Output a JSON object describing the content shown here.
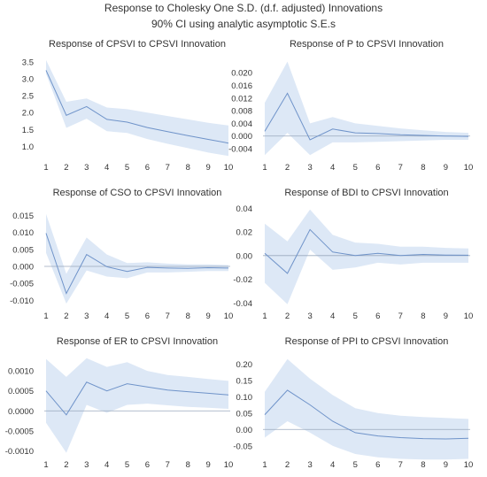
{
  "header": {
    "title": "Response to Cholesky One S.D. (d.f. adjusted) Innovations",
    "subtitle": "90% CI using analytic asymptotic S.E.s"
  },
  "colors": {
    "band": "#dde8f6",
    "line": "#6f93c9",
    "zero": "#9aa9bd",
    "text": "#333333"
  },
  "chart_data": [
    {
      "type": "area",
      "title": "Response of CPSVI to CPSVI Innovation",
      "x": [
        1,
        2,
        3,
        4,
        5,
        6,
        7,
        8,
        9,
        10
      ],
      "ylim": [
        0.7,
        3.6
      ],
      "yticks": [
        1.0,
        1.5,
        2.0,
        2.5,
        3.0,
        3.5
      ],
      "ytick_labels": [
        "1.0",
        "1.5",
        "2.0",
        "2.5",
        "3.0",
        "3.5"
      ],
      "series": [
        {
          "values": [
            3.25,
            1.92,
            2.18,
            1.8,
            1.72,
            1.56,
            1.44,
            1.32,
            1.21,
            1.1
          ]
        },
        {
          "values": [
            3.55,
            2.32,
            2.42,
            2.15,
            2.1,
            2.0,
            1.9,
            1.8,
            1.7,
            1.62
          ]
        },
        {
          "values": [
            3.15,
            1.55,
            1.82,
            1.45,
            1.4,
            1.22,
            1.08,
            0.95,
            0.82,
            0.72
          ]
        }
      ]
    },
    {
      "type": "area",
      "title": "Response of P to CPSVI Innovation",
      "x": [
        1,
        2,
        3,
        4,
        5,
        6,
        7,
        8,
        9,
        10
      ],
      "ylim": [
        -0.0065,
        0.0245
      ],
      "yticks": [
        -0.004,
        0.0,
        0.004,
        0.008,
        0.012,
        0.016,
        0.02
      ],
      "ytick_labels": [
        "-0.004",
        "0.000",
        "0.004",
        "0.008",
        "0.012",
        "0.016",
        "0.020"
      ],
      "series": [
        {
          "values": [
            0.0015,
            0.0135,
            -0.0012,
            0.0022,
            0.001,
            0.0008,
            0.0004,
            0.0002,
            0.0,
            -0.0001
          ]
        },
        {
          "values": [
            0.0105,
            0.0235,
            0.004,
            0.006,
            0.004,
            0.0032,
            0.0024,
            0.0018,
            0.0013,
            0.001
          ]
        },
        {
          "values": [
            -0.006,
            0.001,
            -0.006,
            -0.002,
            -0.002,
            -0.0018,
            -0.0016,
            -0.0014,
            -0.0012,
            -0.0012
          ]
        }
      ]
    },
    {
      "type": "area",
      "title": "Response of CSO to CPSVI Innovation",
      "x": [
        1,
        2,
        3,
        4,
        5,
        6,
        7,
        8,
        9,
        10
      ],
      "ylim": [
        -0.0115,
        0.0175
      ],
      "yticks": [
        -0.01,
        -0.005,
        0.0,
        0.005,
        0.01,
        0.015
      ],
      "ytick_labels": [
        "-0.010",
        "-0.005",
        "0.000",
        "0.005",
        "0.010",
        "0.015"
      ],
      "series": [
        {
          "values": [
            0.0098,
            -0.008,
            0.0035,
            -0.0001,
            -0.0015,
            -0.0003,
            -0.0005,
            -0.0006,
            -0.0004,
            -0.0005
          ]
        },
        {
          "values": [
            0.0155,
            -0.0022,
            0.0085,
            0.0035,
            0.001,
            0.0012,
            0.0008,
            0.0006,
            0.0006,
            0.0004
          ]
        },
        {
          "values": [
            0.004,
            -0.011,
            -0.0012,
            -0.003,
            -0.0035,
            -0.0018,
            -0.0018,
            -0.0016,
            -0.0014,
            -0.0014
          ]
        }
      ]
    },
    {
      "type": "area",
      "title": "Response of BDI to CPSVI Innovation",
      "x": [
        1,
        2,
        3,
        4,
        5,
        6,
        7,
        8,
        9,
        10
      ],
      "ylim": [
        -0.042,
        0.041
      ],
      "yticks": [
        -0.04,
        -0.02,
        0.0,
        0.02,
        0.04
      ],
      "ytick_labels": [
        "-0.04",
        "-0.02",
        "0.00",
        "0.02",
        "0.04"
      ],
      "series": [
        {
          "values": [
            0.002,
            -0.015,
            0.022,
            0.003,
            0.0,
            0.002,
            0.0,
            0.001,
            0.0005,
            0.0003
          ]
        },
        {
          "values": [
            0.027,
            0.012,
            0.039,
            0.0175,
            0.011,
            0.01,
            0.0075,
            0.0075,
            0.0065,
            0.006
          ]
        },
        {
          "values": [
            -0.023,
            -0.041,
            0.005,
            -0.012,
            -0.01,
            -0.006,
            -0.0075,
            -0.006,
            -0.006,
            -0.006
          ]
        }
      ]
    },
    {
      "type": "area",
      "title": "Response of ER to CPSVI Innovation",
      "x": [
        1,
        2,
        3,
        4,
        5,
        6,
        7,
        8,
        9,
        10
      ],
      "ylim": [
        -0.00108,
        0.00138
      ],
      "yticks": [
        -0.001,
        -0.0005,
        0.0,
        0.0005,
        0.001
      ],
      "ytick_labels": [
        "-0.0010",
        "-0.0005",
        "0.0000",
        "0.0005",
        "0.0010"
      ],
      "series": [
        {
          "values": [
            0.0005,
            -0.0001,
            0.00072,
            0.0005,
            0.00068,
            0.0006,
            0.00052,
            0.00048,
            0.00044,
            0.0004
          ]
        },
        {
          "values": [
            0.0013,
            0.00085,
            0.00132,
            0.0011,
            0.00122,
            0.001,
            0.0009,
            0.00085,
            0.0008,
            0.00075
          ]
        },
        {
          "values": [
            -0.0003,
            -0.00105,
            0.00015,
            -5e-05,
            0.00015,
            0.00018,
            0.00014,
            0.0001,
            8e-05,
            5e-05
          ]
        }
      ]
    },
    {
      "type": "area",
      "title": "Response of PPI to CPSVI Innovation",
      "x": [
        1,
        2,
        3,
        4,
        5,
        6,
        7,
        8,
        9,
        10
      ],
      "ylim": [
        -0.075,
        0.225
      ],
      "yticks": [
        -0.05,
        0.0,
        0.05,
        0.1,
        0.15,
        0.2
      ],
      "ytick_labels": [
        "-0.05",
        "0.00",
        "0.05",
        "0.10",
        "0.15",
        "0.20"
      ],
      "series": [
        {
          "values": [
            0.045,
            0.12,
            0.075,
            0.025,
            -0.01,
            -0.02,
            -0.025,
            -0.028,
            -0.029,
            -0.027
          ]
        },
        {
          "values": [
            0.115,
            0.215,
            0.155,
            0.105,
            0.065,
            0.05,
            0.042,
            0.038,
            0.035,
            0.032
          ]
        },
        {
          "values": [
            -0.025,
            0.025,
            -0.01,
            -0.05,
            -0.075,
            -0.085,
            -0.09,
            -0.092,
            -0.092,
            -0.09
          ]
        }
      ]
    }
  ]
}
